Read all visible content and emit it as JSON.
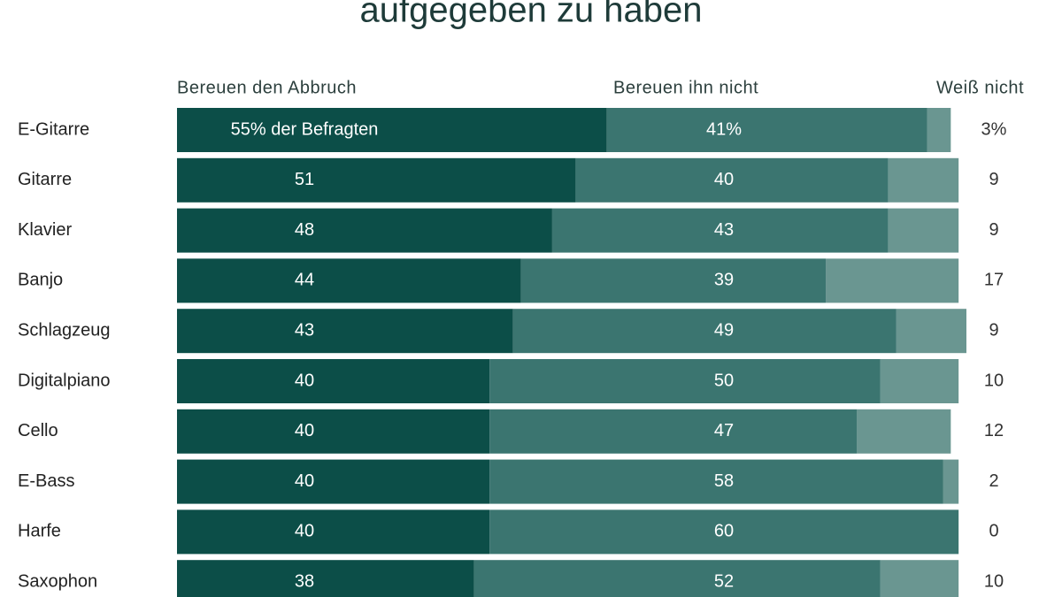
{
  "chart_data": {
    "type": "stacked-bar-horizontal",
    "title": "aufgegeben zu haben",
    "categories": [
      "E-Gitarre",
      "Gitarre",
      "Klavier",
      "Banjo",
      "Schlagzeug",
      "Digitalpiano",
      "Cello",
      "E-Bass",
      "Harfe",
      "Saxophon"
    ],
    "series": [
      {
        "name": "Bereuen den Abbruch",
        "color": "#0c4e48",
        "values": [
          55,
          51,
          48,
          44,
          43,
          40,
          40,
          40,
          40,
          38
        ],
        "value_labels": [
          "55% der Befragten",
          null,
          null,
          null,
          null,
          null,
          null,
          null,
          null,
          null
        ]
      },
      {
        "name": "Bereuen ihn nicht",
        "color": "#3b7570",
        "values": [
          41,
          40,
          43,
          39,
          49,
          50,
          47,
          58,
          60,
          52
        ],
        "value_labels": [
          "41%",
          null,
          null,
          null,
          null,
          null,
          null,
          null,
          null,
          null
        ]
      },
      {
        "name": "Weiß nicht",
        "color": "#6a9691",
        "values": [
          3,
          9,
          9,
          17,
          9,
          10,
          12,
          2,
          0,
          10
        ],
        "value_labels": [
          "3%",
          null,
          null,
          null,
          null,
          null,
          null,
          null,
          null,
          null
        ]
      }
    ]
  }
}
